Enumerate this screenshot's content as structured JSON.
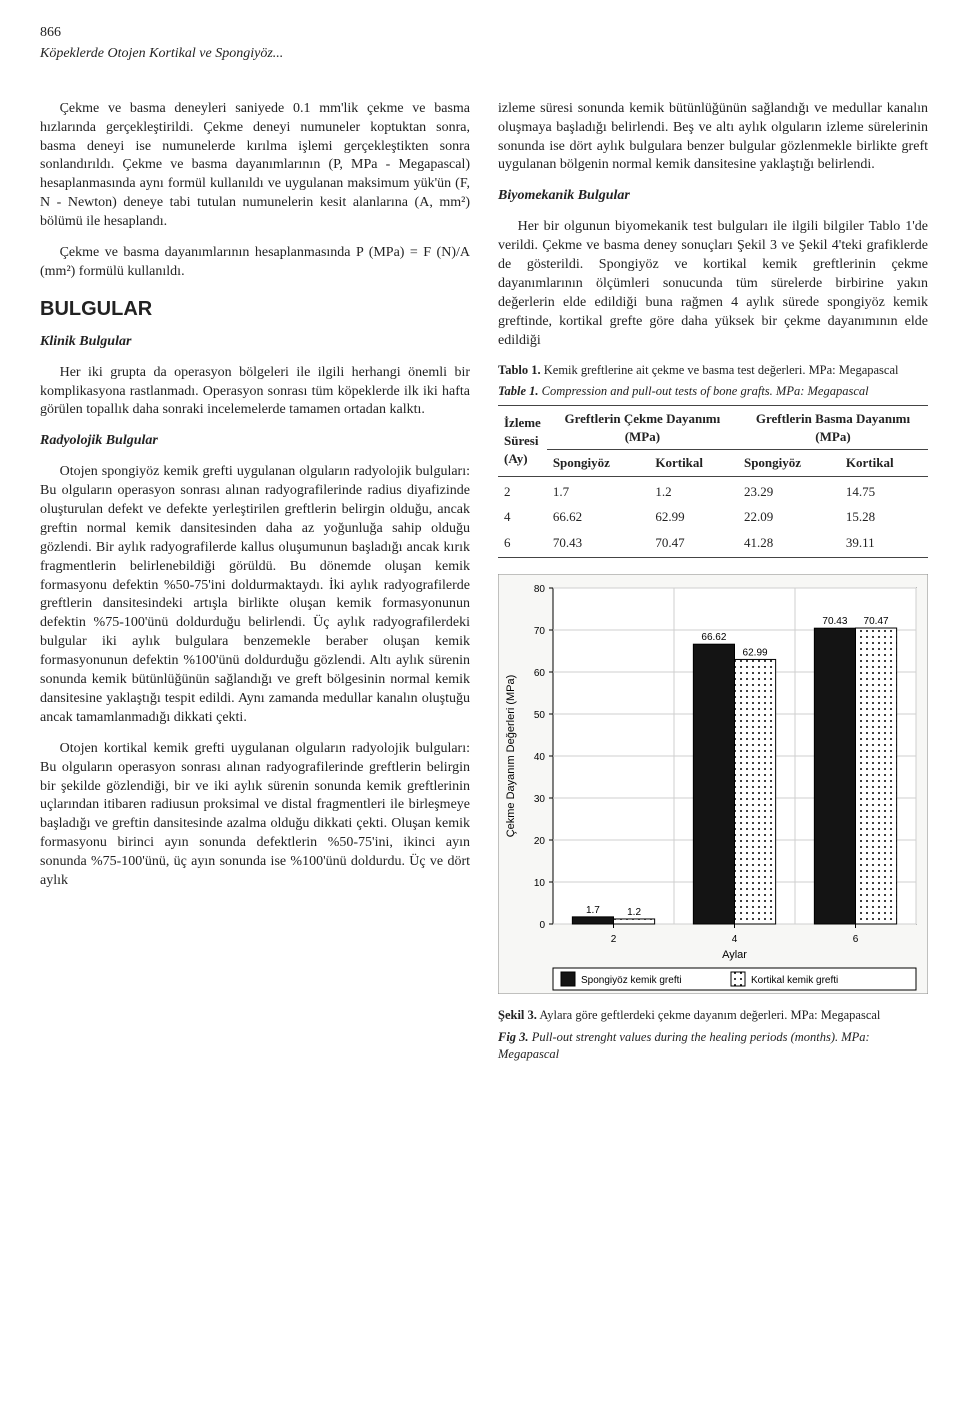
{
  "page_number": "866",
  "running_head": "Köpeklerde Otojen Kortikal ve Spongiyöz...",
  "left": {
    "p1": "Çekme ve basma deneyleri saniyede 0.1 mm'lik çekme ve basma hızlarında gerçekleştirildi. Çekme deneyi numuneler koptuktan sonra, basma deneyi ise numunelerde kırılma işlemi gerçekleştikten sonra sonlandırıldı. Çekme ve basma dayanımlarının (P, MPa - Megapascal) hesaplanmasında aynı formül kullanıldı ve uygulanan maksimum yük'ün (F, N - Newton) deneye tabi tutulan numunelerin kesit alanlarına (A, mm²) bölümü ile hesaplandı.",
    "p2": "Çekme ve basma dayanımlarının hesaplanmasında P (MPa) = F (N)/A (mm²) formülü kullanıldı.",
    "section": "BULGULAR",
    "sub1": "Klinik Bulgular",
    "p3": "Her iki grupta da operasyon bölgeleri ile ilgili herhangi önemli bir komplikasyona rastlanmadı. Operasyon sonrası tüm köpeklerde ilk iki hafta görülen topallık daha sonraki incelemelerde tamamen ortadan kalktı.",
    "sub2": "Radyolojik Bulgular",
    "p4": "Otojen spongiyöz kemik grefti uygulanan olguların radyolojik bulguları: Bu olguların operasyon sonrası alınan radyografilerinde radius diyafizinde oluşturulan defekt ve defekte yerleştirilen greftlerin belirgin olduğu, ancak greftin normal kemik dansitesinden daha az yoğunluğa sahip olduğu gözlendi. Bir aylık radyografilerde kallus oluşumunun başladığı ancak kırık fragmentlerin belirlenebildiği görüldü. Bu dönemde oluşan kemik formasyonu defektin %50-75'ini doldurmaktaydı. İki aylık radyografilerde greftlerin dansitesindeki artışla birlikte oluşan kemik formasyonunun defektin %75-100'ünü doldurduğu belirlendi. Üç aylık radyografilerdeki bulgular iki aylık bulgulara benzemekle beraber oluşan kemik formasyonunun defektin %100'ünü doldurduğu gözlendi. Altı aylık sürenin sonunda kemik bütünlüğünün sağlandığı ve greft bölgesinin normal kemik dansitesine yaklaştığı tespit edildi. Aynı zamanda medullar kanalın oluştuğu ancak tamamlanmadığı dikkati çekti.",
    "p5": "Otojen kortikal kemik grefti uygulanan olguların radyolojik bulguları: Bu olguların operasyon sonrası alınan radyografilerinde greftlerin belirgin bir şekilde gözlendiği, bir ve iki aylık sürenin sonunda kemik greftlerinin uçlarından itibaren radiusun proksimal ve distal fragmentleri ile birleşmeye başladığı ve greftin dansitesinde azalma olduğu dikkati çekti. Oluşan kemik formasyonu birinci ayın sonunda defektlerin %50-75'ini, ikinci ayın sonunda %75-100'ünü, üç ayın sonunda ise %100'ünü doldurdu. Üç ve dört aylık"
  },
  "right": {
    "p1": "izleme süresi sonunda kemik bütünlüğünün sağlandığı ve medullar kanalın oluşmaya başladığı belirlendi. Beş ve altı aylık olguların izleme sürelerinin sonunda ise dört aylık bulgulara benzer bulgular gözlenmekle birlikte greft uygulanan bölgenin normal kemik dansitesine yaklaştığı belirlendi.",
    "sub1": "Biyomekanik Bulgular",
    "p2": "Her bir olgunun biyomekanik test bulguları ile ilgili bilgiler Tablo 1'de verildi. Çekme ve basma deney sonuçları Şekil 3 ve Şekil 4'teki grafiklerde de gösterildi. Spongiyöz ve kortikal kemik greftlerinin çekme dayanımlarının ölçümleri sonucunda tüm sürelerde birbirine yakın değerlerin elde edildiği buna rağmen 4 aylık sürede spongiyöz kemik greftinde, kortikal grefte göre daha yüksek bir çekme dayanımının elde edildiği",
    "table_caption_tr_lead": "Tablo 1.",
    "table_caption_tr": " Kemik greftlerine ait çekme ve basma test değerleri. MPa: Megapascal",
    "table_caption_en_lead": "Table 1.",
    "table_caption_en": " Compression and pull-out tests of bone grafts. MPa: Megapascal",
    "table": {
      "col_left_line1": "İzleme",
      "col_left_line2": "Süresi",
      "col_left_line3": "(Ay)",
      "grp1": "Greftlerin Çekme Dayanımı (MPa)",
      "grp2": "Greftlerin Basma Dayanımı (MPa)",
      "sub_spong": "Spongiyöz",
      "sub_kort": "Kortikal",
      "rows": [
        {
          "ay": "2",
          "cs": "1.7",
          "ck": "1.2",
          "bs": "23.29",
          "bk": "14.75"
        },
        {
          "ay": "4",
          "cs": "66.62",
          "ck": "62.99",
          "bs": "22.09",
          "bk": "15.28"
        },
        {
          "ay": "6",
          "cs": "70.43",
          "ck": "70.47",
          "bs": "41.28",
          "bk": "39.11"
        }
      ]
    }
  },
  "chart": {
    "type": "bar",
    "background_color": "#f7f7f5",
    "plot_bg": "#ffffff",
    "axis_color": "#000000",
    "grid_color": "#cfcfcf",
    "label_fontsize": 11,
    "tick_fontsize": 10,
    "ylabel": "Çekme Dayanım Değerleri (MPa)",
    "xlabel": "Aylar",
    "ylim": [
      0,
      80
    ],
    "ytick_step": 10,
    "categories": [
      "2",
      "4",
      "6"
    ],
    "series": [
      {
        "name": "Spongiyöz kemik grefti",
        "values": [
          1.7,
          66.62,
          70.43
        ],
        "fill": "#141414",
        "label_color": "#000"
      },
      {
        "name": "Kortikal kemik grefti",
        "values": [
          1.2,
          62.99,
          70.47
        ],
        "fill": "dots",
        "label_color": "#000"
      }
    ],
    "bar_width": 0.34,
    "value_labels": [
      [
        "1.7",
        "1.2"
      ],
      [
        "66.62",
        "62.99"
      ],
      [
        "70.43",
        "70.47"
      ]
    ],
    "legend": {
      "marker_size": 14
    }
  },
  "fig_caption_tr_lead": "Şekil 3.",
  "fig_caption_tr": " Aylara göre geftlerdeki çekme dayanım değerleri. MPa: Megapascal",
  "fig_caption_en_lead": "Fig 3.",
  "fig_caption_en": " Pull-out strenght values during the healing periods (months). MPa: Megapascal"
}
